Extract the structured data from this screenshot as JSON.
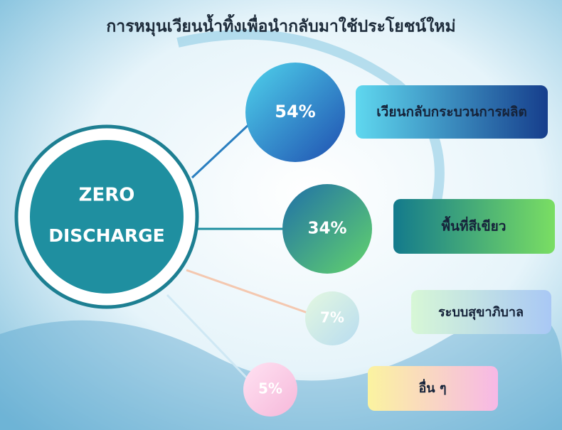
{
  "title": "การหมุนเวียนน้ำทิ้งเพื่อนำกลับมาใช้ประโยชน์ใหม่",
  "center": {
    "line1": "ZERO",
    "line2": "DISCHARGE"
  },
  "items": [
    {
      "value": "54%",
      "label": "เวียนกลับกระบวนการผลิต"
    },
    {
      "value": "34%",
      "label": "พื้นที่สีเขียว"
    },
    {
      "value": "7%",
      "label": "ระบบสุขาภิบาล"
    },
    {
      "value": "5%",
      "label": "อื่น ๆ"
    }
  ]
}
